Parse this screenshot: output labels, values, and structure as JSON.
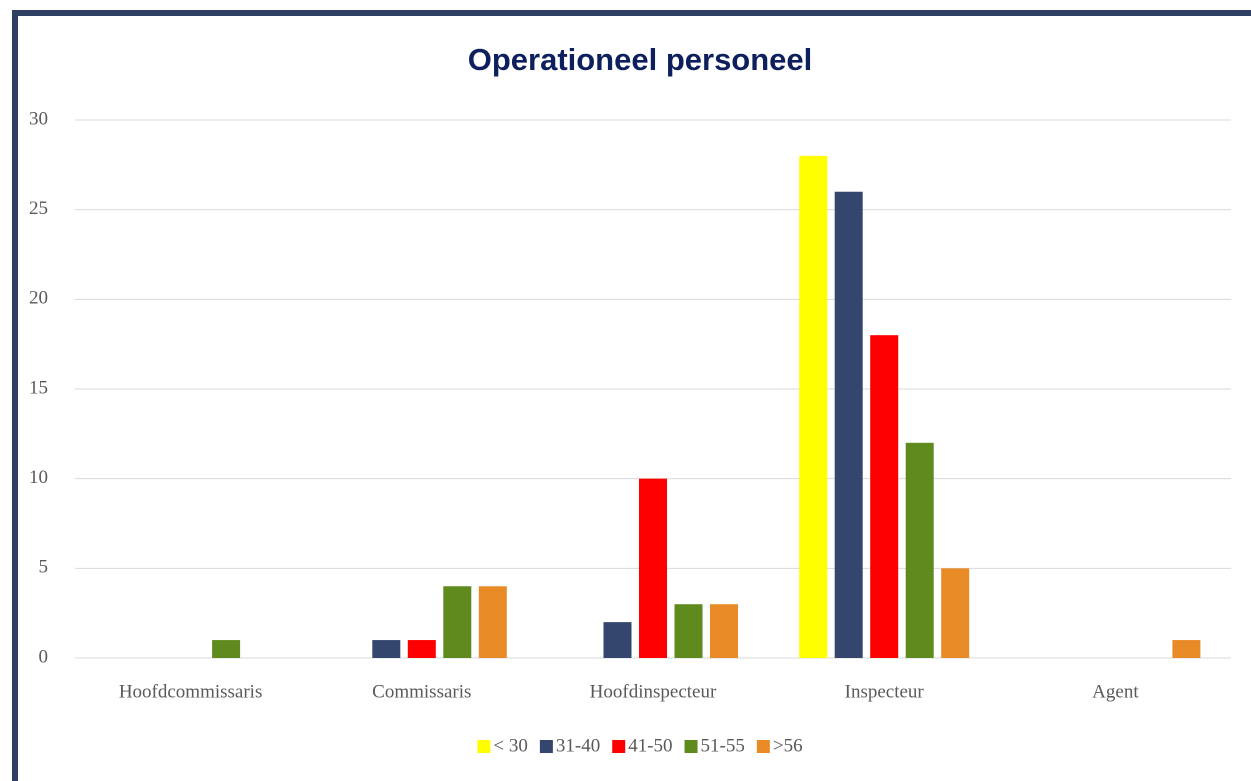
{
  "chart_data": {
    "type": "bar",
    "title": "Operationeel personeel",
    "categories": [
      "Hoofdcommissaris",
      "Commissaris",
      "Hoofdinspecteur",
      "Inspecteur",
      "Agent"
    ],
    "series": [
      {
        "name": "< 30",
        "color": "#ffff00",
        "values": [
          0,
          0,
          0,
          28,
          0
        ]
      },
      {
        "name": "31-40",
        "color": "#34466e",
        "values": [
          0,
          1,
          2,
          26,
          0
        ]
      },
      {
        "name": "41-50",
        "color": "#ff0000",
        "values": [
          0,
          1,
          10,
          18,
          0
        ]
      },
      {
        "name": "51-55",
        "color": "#5e8a1e",
        "values": [
          1,
          4,
          3,
          12,
          0
        ]
      },
      {
        "name": ">56",
        "color": "#e88a25",
        "values": [
          0,
          4,
          3,
          5,
          1
        ]
      }
    ],
    "ylim": [
      0,
      30
    ],
    "yticks": [
      0,
      5,
      10,
      15,
      20,
      25,
      30
    ],
    "grid": true,
    "legend": "bottom"
  }
}
